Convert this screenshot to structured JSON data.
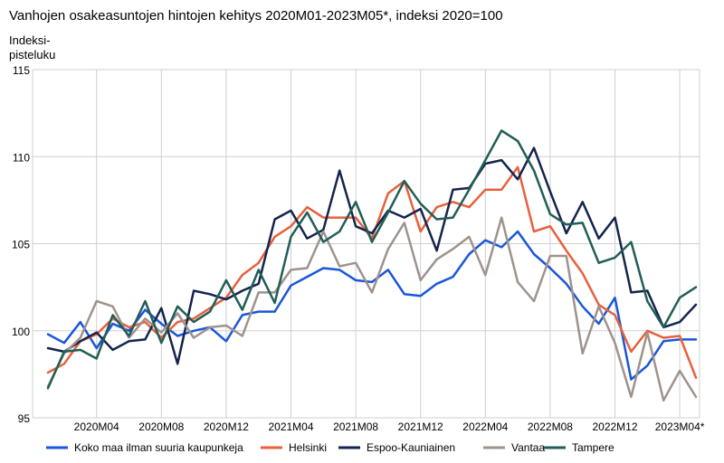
{
  "chart_data": {
    "type": "line",
    "title": "Vanhojen osakeasuntojen hintojen kehitys 2020M01-2023M05*, indeksi 2020=100",
    "ylabel_line1": "Indeksi-",
    "ylabel_line2": "pisteluku",
    "ylim": [
      95,
      115
    ],
    "yticks": [
      "95",
      "100",
      "105",
      "110",
      "115"
    ],
    "ytick_values": [
      95,
      100,
      105,
      110,
      115
    ],
    "x": [
      "2020M01",
      "2020M02",
      "2020M03",
      "2020M04",
      "2020M05",
      "2020M06",
      "2020M07",
      "2020M08",
      "2020M09",
      "2020M10",
      "2020M11",
      "2020M12",
      "2021M01",
      "2021M02",
      "2021M03",
      "2021M04",
      "2021M05",
      "2021M06",
      "2021M07",
      "2021M08",
      "2021M09",
      "2021M10",
      "2021M11",
      "2021M12",
      "2022M01",
      "2022M02",
      "2022M03",
      "2022M04",
      "2022M05",
      "2022M06",
      "2022M07",
      "2022M08",
      "2022M09",
      "2022M10",
      "2022M11",
      "2022M12",
      "2023M01",
      "2023M02",
      "2023M03",
      "2023M04*",
      "2023M05*"
    ],
    "xtick_labels": [
      "2020M04",
      "2020M08",
      "2020M12",
      "2021M04",
      "2021M08",
      "2021M12",
      "2022M04",
      "2022M08",
      "2022M12",
      "2023M04*"
    ],
    "xtick_indices": [
      3,
      7,
      11,
      15,
      19,
      23,
      27,
      31,
      35,
      39
    ],
    "grid": true,
    "legend_position": "bottom",
    "series": [
      {
        "name": "Koko maa ilman suuria kaupunkeja",
        "color": "#1a56db",
        "values": [
          99.8,
          99.3,
          100.5,
          99.0,
          100.4,
          100.0,
          101.2,
          100.4,
          99.7,
          100.0,
          100.2,
          99.4,
          100.9,
          101.1,
          101.1,
          102.6,
          103.1,
          103.6,
          103.5,
          102.9,
          102.8,
          103.5,
          102.1,
          102.0,
          102.7,
          103.1,
          104.4,
          105.2,
          104.8,
          105.7,
          104.4,
          103.6,
          102.7,
          101.4,
          100.4,
          101.9,
          97.2,
          98.0,
          99.4,
          99.5,
          99.5
        ]
      },
      {
        "name": "Helsinki",
        "color": "#e8603c",
        "values": [
          97.6,
          98.1,
          99.4,
          99.8,
          100.7,
          100.2,
          100.5,
          99.6,
          100.5,
          100.7,
          101.3,
          101.9,
          103.2,
          103.9,
          105.4,
          106.0,
          107.1,
          106.5,
          106.5,
          106.5,
          105.3,
          107.9,
          108.6,
          105.7,
          107.1,
          107.4,
          107.1,
          108.1,
          108.1,
          109.4,
          105.7,
          106.0,
          104.6,
          103.3,
          101.5,
          100.9,
          98.8,
          100.0,
          99.6,
          99.7,
          97.3
        ]
      },
      {
        "name": "Espoo-Kauniainen",
        "color": "#14244d",
        "values": [
          99.0,
          98.8,
          99.4,
          99.9,
          98.9,
          99.4,
          99.5,
          101.3,
          98.1,
          102.3,
          102.1,
          101.8,
          102.3,
          102.7,
          106.4,
          106.9,
          105.3,
          105.8,
          109.2,
          106.0,
          105.6,
          106.9,
          106.5,
          107.0,
          104.6,
          108.1,
          108.2,
          109.6,
          109.8,
          108.7,
          110.5,
          108.0,
          105.6,
          107.4,
          105.3,
          106.5,
          102.2,
          102.3,
          100.2,
          100.5,
          101.5
        ]
      },
      {
        "name": "Vantaa",
        "color": "#9e938c",
        "values": [
          96.8,
          98.7,
          99.6,
          101.7,
          101.4,
          99.6,
          100.7,
          99.9,
          101.0,
          99.6,
          100.2,
          100.3,
          99.7,
          102.2,
          102.2,
          103.5,
          103.6,
          105.7,
          103.7,
          103.9,
          102.2,
          104.7,
          106.2,
          102.9,
          104.1,
          104.7,
          105.4,
          103.2,
          106.5,
          102.8,
          101.7,
          104.3,
          104.3,
          98.7,
          101.4,
          99.3,
          96.2,
          99.9,
          96.0,
          97.7,
          96.2
        ]
      },
      {
        "name": "Tampere",
        "color": "#215e55",
        "values": [
          96.7,
          98.8,
          98.9,
          98.4,
          100.9,
          99.7,
          101.7,
          99.3,
          101.4,
          100.5,
          101.1,
          102.9,
          101.2,
          103.5,
          101.6,
          105.4,
          106.8,
          105.1,
          105.7,
          107.4,
          105.1,
          106.8,
          108.6,
          107.3,
          106.4,
          106.5,
          108.1,
          109.8,
          111.5,
          110.9,
          109.2,
          106.7,
          106.1,
          106.2,
          103.9,
          104.2,
          105.1,
          101.7,
          100.2,
          101.9,
          102.5
        ]
      }
    ]
  }
}
